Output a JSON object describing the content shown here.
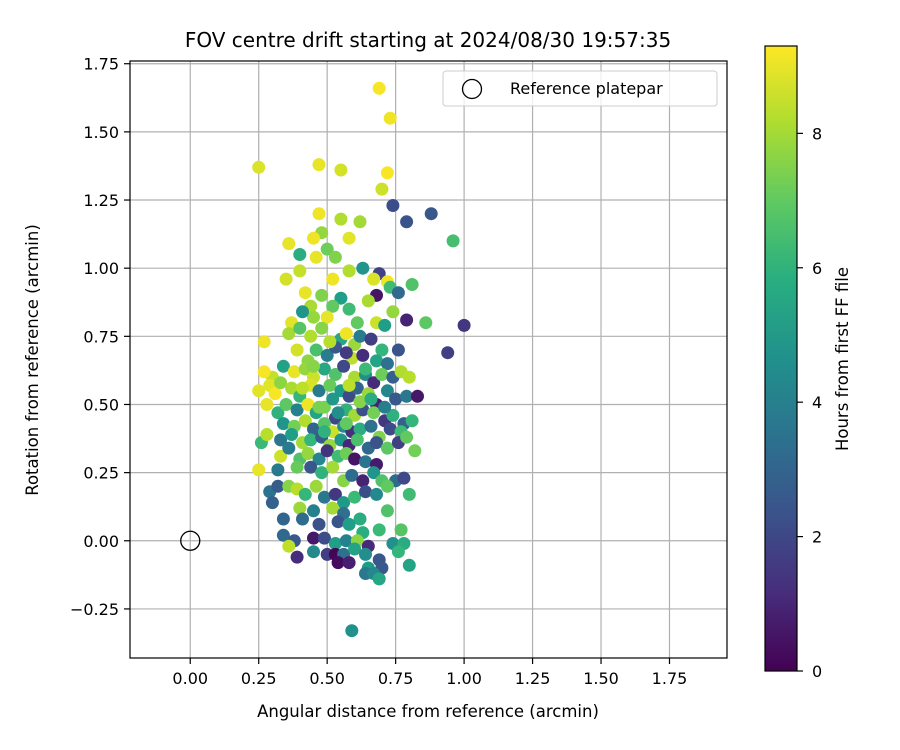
{
  "chart_data": {
    "type": "scatter",
    "title": "FOV centre drift starting at 2024/08/30 19:57:35",
    "xlabel": "Angular distance from reference (arcmin)",
    "ylabel": "Rotation from reference (arcmin)",
    "xlim": [
      -0.22,
      1.96
    ],
    "ylim": [
      -0.43,
      1.76
    ],
    "xticks": [
      0.0,
      0.25,
      0.5,
      0.75,
      1.0,
      1.25,
      1.5,
      1.75
    ],
    "xtick_labels": [
      "0.00",
      "0.25",
      "0.50",
      "0.75",
      "1.00",
      "1.25",
      "1.50",
      "1.75"
    ],
    "yticks": [
      -0.25,
      0.0,
      0.25,
      0.5,
      0.75,
      1.0,
      1.25,
      1.5,
      1.75
    ],
    "ytick_labels": [
      "−0.25",
      "0.00",
      "0.25",
      "0.50",
      "0.75",
      "1.00",
      "1.25",
      "1.50",
      "1.75"
    ],
    "grid": true,
    "legend": {
      "placement": "top-right",
      "entries": [
        {
          "label": "Reference platepar",
          "marker": "open-circle"
        }
      ]
    },
    "reference_point": {
      "x": 0.0,
      "y": 0.0,
      "label": "Reference platepar"
    },
    "colorbar": {
      "label": "Hours from first FF file",
      "colormap": "viridis",
      "range": [
        0,
        9.3
      ],
      "ticks": [
        0,
        2,
        4,
        6,
        8
      ],
      "tick_labels": [
        "0",
        "2",
        "4",
        "6",
        "8"
      ]
    },
    "points": [
      [
        0.69,
        1.66,
        9.2
      ],
      [
        0.73,
        1.55,
        9.1
      ],
      [
        0.25,
        1.37,
        8.8
      ],
      [
        0.47,
        1.38,
        9.0
      ],
      [
        0.55,
        1.36,
        8.7
      ],
      [
        0.72,
        1.35,
        9.2
      ],
      [
        0.7,
        1.29,
        8.6
      ],
      [
        0.74,
        1.23,
        2.2
      ],
      [
        0.79,
        1.17,
        2.4
      ],
      [
        0.88,
        1.2,
        2.5
      ],
      [
        0.96,
        1.1,
        6.5
      ],
      [
        0.47,
        1.2,
        9.1
      ],
      [
        0.55,
        1.18,
        8.2
      ],
      [
        0.62,
        1.17,
        8.0
      ],
      [
        0.58,
        1.11,
        8.9
      ],
      [
        0.48,
        1.13,
        7.8
      ],
      [
        0.36,
        1.09,
        9.0
      ],
      [
        0.4,
        1.05,
        5.8
      ],
      [
        0.45,
        1.11,
        9.1
      ],
      [
        0.5,
        1.07,
        7.2
      ],
      [
        0.53,
        1.04,
        7.5
      ],
      [
        0.63,
        1.0,
        4.8
      ],
      [
        0.69,
        0.98,
        1.8
      ],
      [
        0.46,
        1.04,
        9.0
      ],
      [
        0.4,
        0.99,
        8.5
      ],
      [
        0.35,
        0.96,
        8.7
      ],
      [
        0.52,
        0.96,
        9.1
      ],
      [
        0.58,
        0.99,
        8.2
      ],
      [
        0.67,
        0.96,
        8.8
      ],
      [
        0.72,
        0.95,
        9.1
      ],
      [
        0.73,
        0.93,
        6.4
      ],
      [
        0.76,
        0.91,
        3.2
      ],
      [
        0.81,
        0.94,
        6.7
      ],
      [
        0.68,
        0.9,
        0.5
      ],
      [
        0.55,
        0.89,
        5.2
      ],
      [
        0.48,
        0.9,
        7.5
      ],
      [
        0.42,
        0.91,
        9.0
      ],
      [
        0.44,
        0.86,
        8.1
      ],
      [
        0.52,
        0.86,
        7.0
      ],
      [
        0.5,
        0.82,
        9.0
      ],
      [
        0.45,
        0.82,
        7.8
      ],
      [
        0.41,
        0.84,
        4.8
      ],
      [
        0.37,
        0.8,
        8.9
      ],
      [
        0.58,
        0.85,
        6.4
      ],
      [
        0.61,
        0.8,
        7.0
      ],
      [
        0.65,
        0.88,
        8.1
      ],
      [
        0.68,
        0.8,
        8.6
      ],
      [
        0.71,
        0.79,
        5.2
      ],
      [
        0.74,
        0.84,
        7.8
      ],
      [
        0.79,
        0.81,
        0.9
      ],
      [
        0.86,
        0.8,
        6.9
      ],
      [
        1.0,
        0.79,
        1.5
      ],
      [
        0.94,
        0.69,
        1.7
      ],
      [
        0.27,
        0.73,
        9.1
      ],
      [
        0.36,
        0.76,
        8.0
      ],
      [
        0.4,
        0.78,
        6.8
      ],
      [
        0.44,
        0.75,
        8.2
      ],
      [
        0.48,
        0.78,
        7.6
      ],
      [
        0.55,
        0.74,
        5.5
      ],
      [
        0.57,
        0.76,
        9.1
      ],
      [
        0.6,
        0.72,
        7.9
      ],
      [
        0.62,
        0.75,
        3.9
      ],
      [
        0.66,
        0.74,
        1.7
      ],
      [
        0.7,
        0.7,
        6.1
      ],
      [
        0.76,
        0.7,
        2.4
      ],
      [
        0.39,
        0.7,
        8.7
      ],
      [
        0.43,
        0.66,
        7.7
      ],
      [
        0.46,
        0.7,
        6.6
      ],
      [
        0.5,
        0.68,
        4.0
      ],
      [
        0.53,
        0.71,
        2.6
      ],
      [
        0.59,
        0.67,
        8.4
      ],
      [
        0.63,
        0.68,
        1.2
      ],
      [
        0.68,
        0.66,
        5.4
      ],
      [
        0.72,
        0.65,
        3.5
      ],
      [
        0.3,
        0.6,
        8.5
      ],
      [
        0.34,
        0.64,
        5.3
      ],
      [
        0.38,
        0.62,
        9.0
      ],
      [
        0.42,
        0.63,
        7.8
      ],
      [
        0.45,
        0.6,
        8.6
      ],
      [
        0.49,
        0.63,
        5.6
      ],
      [
        0.53,
        0.61,
        6.7
      ],
      [
        0.56,
        0.64,
        2.0
      ],
      [
        0.6,
        0.6,
        8.1
      ],
      [
        0.64,
        0.61,
        4.5
      ],
      [
        0.67,
        0.58,
        1.1
      ],
      [
        0.7,
        0.61,
        7.2
      ],
      [
        0.74,
        0.6,
        2.8
      ],
      [
        0.77,
        0.62,
        8.2
      ],
      [
        0.8,
        0.6,
        8.3
      ],
      [
        0.27,
        0.62,
        9.2
      ],
      [
        0.29,
        0.57,
        8.9
      ],
      [
        0.31,
        0.54,
        9.2
      ],
      [
        0.33,
        0.58,
        7.7
      ],
      [
        0.37,
        0.56,
        8.1
      ],
      [
        0.4,
        0.53,
        6.2
      ],
      [
        0.44,
        0.57,
        8.8
      ],
      [
        0.47,
        0.55,
        3.8
      ],
      [
        0.51,
        0.57,
        7.1
      ],
      [
        0.55,
        0.55,
        5.1
      ],
      [
        0.58,
        0.53,
        2.1
      ],
      [
        0.61,
        0.56,
        3.0
      ],
      [
        0.65,
        0.54,
        7.9
      ],
      [
        0.68,
        0.5,
        0.8
      ],
      [
        0.72,
        0.55,
        4.3
      ],
      [
        0.75,
        0.52,
        2.6
      ],
      [
        0.79,
        0.53,
        3.7
      ],
      [
        0.83,
        0.53,
        0.6
      ],
      [
        0.25,
        0.55,
        8.9
      ],
      [
        0.28,
        0.5,
        9.0
      ],
      [
        0.32,
        0.47,
        6.0
      ],
      [
        0.35,
        0.5,
        6.9
      ],
      [
        0.39,
        0.48,
        4.1
      ],
      [
        0.43,
        0.5,
        9.1
      ],
      [
        0.46,
        0.47,
        5.4
      ],
      [
        0.49,
        0.49,
        7.4
      ],
      [
        0.53,
        0.45,
        1.9
      ],
      [
        0.57,
        0.48,
        6.0
      ],
      [
        0.6,
        0.46,
        8.0
      ],
      [
        0.63,
        0.48,
        2.3
      ],
      [
        0.67,
        0.47,
        7.3
      ],
      [
        0.71,
        0.44,
        1.5
      ],
      [
        0.74,
        0.46,
        5.9
      ],
      [
        0.78,
        0.43,
        2.9
      ],
      [
        0.81,
        0.44,
        6.1
      ],
      [
        0.34,
        0.43,
        4.8
      ],
      [
        0.38,
        0.42,
        7.3
      ],
      [
        0.42,
        0.44,
        8.2
      ],
      [
        0.45,
        0.41,
        3.0
      ],
      [
        0.49,
        0.43,
        6.8
      ],
      [
        0.52,
        0.4,
        8.6
      ],
      [
        0.56,
        0.42,
        4.5
      ],
      [
        0.59,
        0.4,
        1.3
      ],
      [
        0.62,
        0.41,
        5.8
      ],
      [
        0.66,
        0.42,
        3.4
      ],
      [
        0.69,
        0.38,
        7.5
      ],
      [
        0.73,
        0.41,
        2.1
      ],
      [
        0.77,
        0.4,
        6.4
      ],
      [
        0.26,
        0.36,
        6.3
      ],
      [
        0.28,
        0.39,
        8.3
      ],
      [
        0.33,
        0.37,
        3.6
      ],
      [
        0.37,
        0.39,
        5.2
      ],
      [
        0.41,
        0.36,
        8.0
      ],
      [
        0.44,
        0.37,
        6.1
      ],
      [
        0.48,
        0.38,
        2.7
      ],
      [
        0.51,
        0.35,
        7.8
      ],
      [
        0.55,
        0.37,
        4.9
      ],
      [
        0.58,
        0.35,
        1.0
      ],
      [
        0.61,
        0.37,
        6.6
      ],
      [
        0.65,
        0.34,
        3.1
      ],
      [
        0.68,
        0.36,
        2.4
      ],
      [
        0.72,
        0.34,
        6.9
      ],
      [
        0.76,
        0.36,
        1.7
      ],
      [
        0.79,
        0.38,
        7.0
      ],
      [
        0.82,
        0.33,
        7.3
      ],
      [
        0.33,
        0.31,
        8.6
      ],
      [
        0.36,
        0.34,
        3.9
      ],
      [
        0.4,
        0.3,
        6.7
      ],
      [
        0.43,
        0.32,
        7.8
      ],
      [
        0.47,
        0.3,
        4.3
      ],
      [
        0.5,
        0.33,
        1.4
      ],
      [
        0.54,
        0.31,
        6.4
      ],
      [
        0.57,
        0.32,
        7.2
      ],
      [
        0.6,
        0.3,
        0.5
      ],
      [
        0.64,
        0.29,
        3.6
      ],
      [
        0.68,
        0.28,
        0.7
      ],
      [
        0.25,
        0.26,
        9.0
      ],
      [
        0.32,
        0.26,
        3.8
      ],
      [
        0.39,
        0.27,
        7.1
      ],
      [
        0.44,
        0.27,
        2.5
      ],
      [
        0.48,
        0.25,
        6.0
      ],
      [
        0.52,
        0.27,
        8.0
      ],
      [
        0.56,
        0.22,
        7.6
      ],
      [
        0.59,
        0.24,
        3.3
      ],
      [
        0.63,
        0.22,
        0.9
      ],
      [
        0.67,
        0.25,
        4.8
      ],
      [
        0.7,
        0.22,
        6.7
      ],
      [
        0.75,
        0.22,
        3.2
      ],
      [
        0.78,
        0.23,
        2.0
      ],
      [
        0.29,
        0.18,
        3.5
      ],
      [
        0.32,
        0.2,
        2.7
      ],
      [
        0.36,
        0.2,
        7.6
      ],
      [
        0.39,
        0.19,
        8.3
      ],
      [
        0.42,
        0.17,
        6.2
      ],
      [
        0.46,
        0.2,
        7.9
      ],
      [
        0.49,
        0.16,
        3.7
      ],
      [
        0.53,
        0.17,
        1.5
      ],
      [
        0.56,
        0.14,
        5.0
      ],
      [
        0.6,
        0.16,
        6.3
      ],
      [
        0.64,
        0.18,
        2.2
      ],
      [
        0.68,
        0.17,
        4.4
      ],
      [
        0.72,
        0.2,
        7.0
      ],
      [
        0.8,
        0.17,
        6.4
      ],
      [
        0.3,
        0.14,
        2.9
      ],
      [
        0.4,
        0.12,
        7.9
      ],
      [
        0.45,
        0.11,
        4.1
      ],
      [
        0.52,
        0.12,
        8.0
      ],
      [
        0.56,
        0.1,
        3.4
      ],
      [
        0.62,
        0.08,
        5.7
      ],
      [
        0.72,
        0.11,
        6.7
      ],
      [
        0.34,
        0.08,
        3.0
      ],
      [
        0.41,
        0.08,
        3.2
      ],
      [
        0.47,
        0.06,
        2.3
      ],
      [
        0.54,
        0.07,
        2.4
      ],
      [
        0.58,
        0.06,
        5.2
      ],
      [
        0.63,
        0.03,
        5.8
      ],
      [
        0.69,
        0.04,
        6.3
      ],
      [
        0.77,
        0.04,
        6.8
      ],
      [
        0.34,
        0.02,
        3.1
      ],
      [
        0.38,
        0.0,
        2.6
      ],
      [
        0.45,
        0.01,
        0.6
      ],
      [
        0.49,
        0.01,
        2.1
      ],
      [
        0.53,
        -0.01,
        5.2
      ],
      [
        0.57,
        0.0,
        4.1
      ],
      [
        0.61,
        0.0,
        7.7
      ],
      [
        0.65,
        -0.02,
        1.1
      ],
      [
        0.74,
        -0.01,
        4.7
      ],
      [
        0.78,
        -0.01,
        5.7
      ],
      [
        0.36,
        -0.02,
        8.4
      ],
      [
        0.39,
        -0.06,
        1.2
      ],
      [
        0.45,
        -0.04,
        4.4
      ],
      [
        0.5,
        -0.05,
        1.7
      ],
      [
        0.53,
        -0.05,
        0.1
      ],
      [
        0.56,
        -0.05,
        3.4
      ],
      [
        0.6,
        -0.03,
        5.4
      ],
      [
        0.64,
        -0.05,
        4.6
      ],
      [
        0.69,
        -0.07,
        2.5
      ],
      [
        0.76,
        -0.04,
        6.1
      ],
      [
        0.54,
        -0.08,
        0.3
      ],
      [
        0.58,
        -0.08,
        0.8
      ],
      [
        0.65,
        -0.1,
        5.1
      ],
      [
        0.7,
        -0.1,
        2.6
      ],
      [
        0.8,
        -0.09,
        5.4
      ],
      [
        0.64,
        -0.12,
        3.7
      ],
      [
        0.67,
        -0.12,
        4.3
      ],
      [
        0.69,
        -0.14,
        5.5
      ],
      [
        0.59,
        -0.33,
        4.7
      ],
      [
        0.47,
        0.49,
        7.4
      ],
      [
        0.52,
        0.52,
        5.0
      ],
      [
        0.64,
        0.63,
        6.3
      ],
      [
        0.58,
        0.57,
        8.4
      ],
      [
        0.54,
        0.47,
        4.6
      ],
      [
        0.62,
        0.51,
        7.6
      ],
      [
        0.66,
        0.52,
        5.7
      ],
      [
        0.49,
        0.4,
        5.9
      ],
      [
        0.57,
        0.43,
        7.0
      ],
      [
        0.71,
        0.49,
        4.0
      ],
      [
        0.45,
        0.64,
        7.6
      ],
      [
        0.51,
        0.73,
        8.3
      ],
      [
        0.57,
        0.69,
        1.6
      ],
      [
        0.41,
        0.56,
        8.4
      ]
    ]
  }
}
